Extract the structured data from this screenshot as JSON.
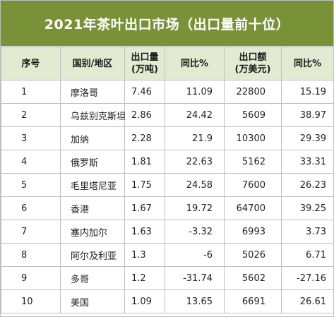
{
  "title": "2021年茶叶出口市场（出口量前十位）",
  "colors": {
    "title_bg": "#799237",
    "header_bg": "#e2ebd2",
    "border": "#bfbfbf"
  },
  "headers": {
    "rank": "序号",
    "country": "国别/地区",
    "volume_line1": "出口量",
    "volume_line2": "(万吨)",
    "volume_yoy": "同比%",
    "amount_line1": "出口额",
    "amount_line2": "(万美元)",
    "amount_yoy": "同比%"
  },
  "rows": [
    {
      "rank": "1",
      "country": "摩洛哥",
      "volume": "7.46",
      "volume_yoy": "11.09",
      "amount": "22800",
      "amount_yoy": "15.19"
    },
    {
      "rank": "2",
      "country": "乌兹别克斯坦",
      "volume": "2.86",
      "volume_yoy": "24.42",
      "amount": "5609",
      "amount_yoy": "38.97"
    },
    {
      "rank": "3",
      "country": "加纳",
      "volume": "2.28",
      "volume_yoy": "21.9",
      "amount": "10300",
      "amount_yoy": "29.39"
    },
    {
      "rank": "4",
      "country": "俄罗斯",
      "volume": "1.81",
      "volume_yoy": "22.63",
      "amount": "5162",
      "amount_yoy": "33.31"
    },
    {
      "rank": "5",
      "country": "毛里塔尼亚",
      "volume": "1.75",
      "volume_yoy": "24.58",
      "amount": "7600",
      "amount_yoy": "26.23"
    },
    {
      "rank": "6",
      "country": "香港",
      "volume": "1.67",
      "volume_yoy": "19.72",
      "amount": "64700",
      "amount_yoy": "39.25"
    },
    {
      "rank": "7",
      "country": "塞内加尔",
      "volume": "1.63",
      "volume_yoy": "-3.32",
      "amount": "6993",
      "amount_yoy": "3.73"
    },
    {
      "rank": "8",
      "country": "阿尔及利亚",
      "volume": "1.3",
      "volume_yoy": "-6",
      "amount": "5026",
      "amount_yoy": "6.71"
    },
    {
      "rank": "9",
      "country": "多哥",
      "volume": "1.2",
      "volume_yoy": "-31.74",
      "amount": "5602",
      "amount_yoy": "-27.16"
    },
    {
      "rank": "10",
      "country": "美国",
      "volume": "1.09",
      "volume_yoy": "13.65",
      "amount": "6691",
      "amount_yoy": "26.61"
    }
  ]
}
